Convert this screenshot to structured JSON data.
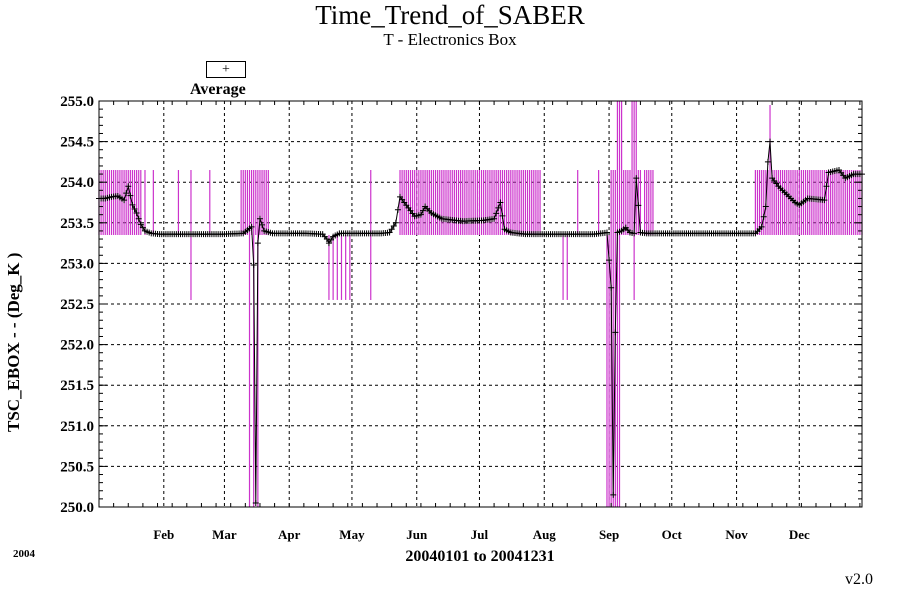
{
  "chart_data": {
    "type": "line",
    "title": "Time_Trend_of_SABER",
    "subtitle": "T - Electronics Box",
    "ylabel": "TSC_EBOX  - - (Deg_K )",
    "xlabel": "20040101 to 20041231",
    "year_label": "2004",
    "version": "v2.0",
    "legend": {
      "marker": "+",
      "label": "Average"
    },
    "ylim": [
      250.0,
      255.0
    ],
    "yticks": [
      "250.0",
      "250.5",
      "251.0",
      "251.5",
      "252.0",
      "252.5",
      "253.0",
      "253.5",
      "254.0",
      "254.5",
      "255.0"
    ],
    "xlim": [
      1,
      366
    ],
    "month_ticks": [
      {
        "label": "Feb",
        "day": 32
      },
      {
        "label": "Mar",
        "day": 61
      },
      {
        "label": "Apr",
        "day": 92
      },
      {
        "label": "May",
        "day": 122
      },
      {
        "label": "Jun",
        "day": 153
      },
      {
        "label": "Jul",
        "day": 183
      },
      {
        "label": "Aug",
        "day": 214
      },
      {
        "label": "Sep",
        "day": 245
      },
      {
        "label": "Oct",
        "day": 275
      },
      {
        "label": "Nov",
        "day": 306
      },
      {
        "label": "Dec",
        "day": 336
      }
    ],
    "colors": {
      "average": "#000000",
      "range": "#cc33cc",
      "grid": "#000000"
    },
    "grid": true,
    "series": [
      {
        "name": "Average",
        "points": [
          [
            1,
            253.8
          ],
          [
            4,
            253.8
          ],
          [
            7,
            253.82
          ],
          [
            10,
            253.83
          ],
          [
            13,
            253.78
          ],
          [
            15,
            253.95
          ],
          [
            17,
            253.72
          ],
          [
            19,
            253.62
          ],
          [
            21,
            253.48
          ],
          [
            23,
            253.4
          ],
          [
            26,
            253.37
          ],
          [
            30,
            253.36
          ],
          [
            60,
            253.36
          ],
          [
            70,
            253.37
          ],
          [
            74,
            253.45
          ],
          [
            75,
            252.98
          ],
          [
            76,
            250.05
          ],
          [
            77,
            253.25
          ],
          [
            78,
            253.55
          ],
          [
            80,
            253.4
          ],
          [
            84,
            253.37
          ],
          [
            100,
            253.37
          ],
          [
            108,
            253.36
          ],
          [
            110,
            253.3
          ],
          [
            111,
            253.25
          ],
          [
            113,
            253.33
          ],
          [
            116,
            253.37
          ],
          [
            136,
            253.37
          ],
          [
            140,
            253.38
          ],
          [
            143,
            253.5
          ],
          [
            145,
            253.82
          ],
          [
            147,
            253.75
          ],
          [
            150,
            253.65
          ],
          [
            152,
            253.58
          ],
          [
            155,
            253.6
          ],
          [
            157,
            253.7
          ],
          [
            160,
            253.62
          ],
          [
            165,
            253.55
          ],
          [
            175,
            253.52
          ],
          [
            185,
            253.53
          ],
          [
            190,
            253.55
          ],
          [
            193,
            253.75
          ],
          [
            195,
            253.42
          ],
          [
            198,
            253.38
          ],
          [
            205,
            253.36
          ],
          [
            238,
            253.36
          ],
          [
            244,
            253.38
          ],
          [
            246,
            252.7
          ],
          [
            247,
            250.15
          ],
          [
            248,
            252.15
          ],
          [
            249,
            253.38
          ],
          [
            251,
            253.4
          ],
          [
            253,
            253.44
          ],
          [
            255,
            253.38
          ],
          [
            257,
            253.37
          ],
          [
            258,
            254.05
          ],
          [
            260,
            253.38
          ],
          [
            263,
            253.37
          ],
          [
            315,
            253.37
          ],
          [
            318,
            253.45
          ],
          [
            320,
            253.7
          ],
          [
            321,
            254.25
          ],
          [
            322,
            254.5
          ],
          [
            323,
            254.05
          ],
          [
            326,
            253.95
          ],
          [
            330,
            253.85
          ],
          [
            334,
            253.75
          ],
          [
            336,
            253.72
          ],
          [
            340,
            253.8
          ],
          [
            348,
            253.78
          ],
          [
            350,
            254.12
          ],
          [
            355,
            254.15
          ],
          [
            358,
            254.05
          ],
          [
            362,
            254.1
          ],
          [
            366,
            254.1
          ]
        ]
      },
      {
        "name": "Min/Max range",
        "style": "vertical bars",
        "default_min": 253.35,
        "default_max": 254.15,
        "bar_days": [
          [
            1,
            13
          ],
          [
            14,
            14
          ],
          [
            15,
            15
          ],
          [
            16,
            21
          ],
          [
            23,
            23
          ],
          [
            27,
            27
          ],
          [
            39,
            39
          ],
          [
            54,
            54
          ],
          [
            69,
            82
          ],
          [
            145,
            212
          ],
          [
            223,
            223
          ],
          [
            230,
            230
          ],
          [
            240,
            240
          ],
          [
            246,
            260
          ],
          [
            262,
            266
          ],
          [
            315,
            366
          ]
        ],
        "excursions": [
          {
            "day": 45,
            "min": 252.55,
            "max": 254.15
          },
          {
            "day": 73,
            "min": 250.0,
            "max": 254.15
          },
          {
            "day": 75,
            "min": 250.0,
            "max": 254.15
          },
          {
            "day": 77,
            "min": 250.0,
            "max": 254.15
          },
          {
            "day": 111,
            "min": 252.55,
            "max": 253.35
          },
          {
            "day": 113,
            "min": 252.55,
            "max": 253.35
          },
          {
            "day": 115,
            "min": 252.55,
            "max": 253.35
          },
          {
            "day": 117,
            "min": 252.55,
            "max": 253.35
          },
          {
            "day": 119,
            "min": 252.55,
            "max": 253.35
          },
          {
            "day": 121,
            "min": 252.55,
            "max": 253.35
          },
          {
            "day": 131,
            "min": 252.55,
            "max": 254.15
          },
          {
            "day": 223,
            "min": 252.55,
            "max": 253.35
          },
          {
            "day": 225,
            "min": 252.55,
            "max": 253.35
          },
          {
            "day": 244,
            "min": 250.0,
            "max": 253.35
          },
          {
            "day": 245,
            "min": 250.0,
            "max": 253.35
          },
          {
            "day": 246,
            "min": 250.0,
            "max": 254.15
          },
          {
            "day": 247,
            "min": 250.0,
            "max": 254.15
          },
          {
            "day": 248,
            "min": 250.0,
            "max": 254.15
          },
          {
            "day": 249,
            "min": 250.0,
            "max": 255.0
          },
          {
            "day": 250,
            "min": 250.0,
            "max": 255.0
          },
          {
            "day": 251,
            "min": 253.35,
            "max": 255.0
          },
          {
            "day": 256,
            "min": 253.35,
            "max": 255.0
          },
          {
            "day": 257,
            "min": 252.55,
            "max": 255.0
          },
          {
            "day": 258,
            "min": 253.35,
            "max": 255.0
          },
          {
            "day": 322,
            "min": 253.35,
            "max": 254.95
          }
        ]
      }
    ]
  }
}
